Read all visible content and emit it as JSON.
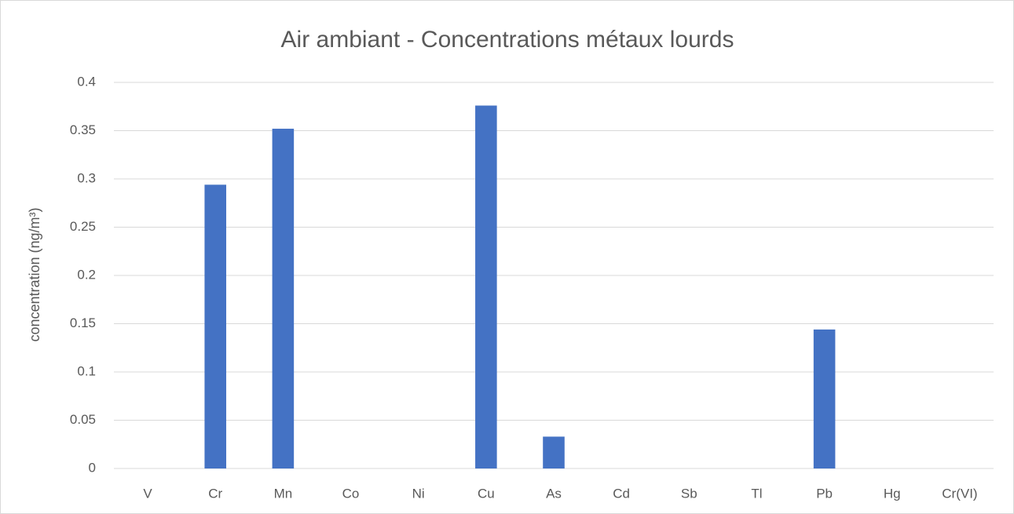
{
  "chart_data": {
    "type": "bar",
    "title": "Air ambiant - Concentrations métaux lourds",
    "y_label": "concentration (ng/m³)",
    "categories": [
      "V",
      "Cr",
      "Mn",
      "Co",
      "Ni",
      "Cu",
      "As",
      "Cd",
      "Sb",
      "Tl",
      "Pb",
      "Hg",
      "Cr(VI)"
    ],
    "values": [
      0,
      0.294,
      0.352,
      0,
      0,
      0.376,
      0.033,
      0,
      0,
      0,
      0.144,
      0,
      0
    ],
    "color": "#4472c4",
    "ylim": [
      0,
      0.4
    ],
    "yticks": [
      0,
      0.05,
      0.1,
      0.15,
      0.2,
      0.25,
      0.3,
      0.35,
      0.4
    ],
    "grid": true
  }
}
